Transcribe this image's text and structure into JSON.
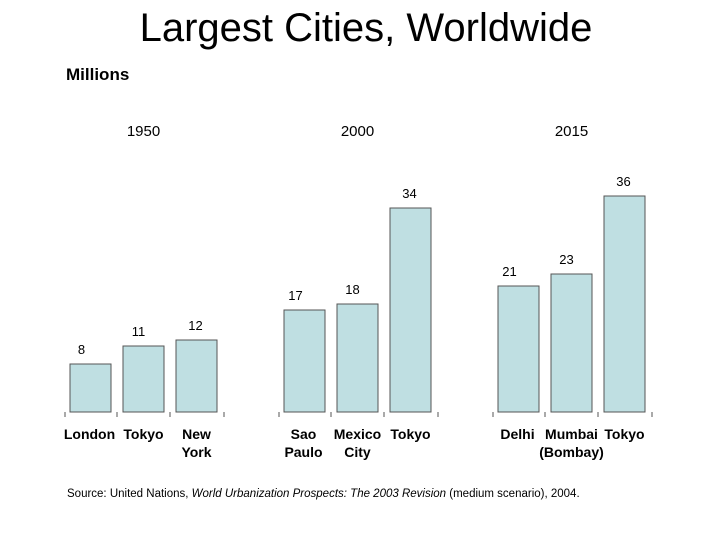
{
  "title": "Largest Cities, Worldwide",
  "units_label": "Millions",
  "source": {
    "prefix": "Source: United Nations, ",
    "publication": "World Urbanization Prospects: The 2003 Revision",
    "suffix": " (medium scenario), 2004."
  },
  "colors": {
    "bar_fill": "#bfdfe2",
    "bar_stroke": "#555555"
  },
  "chart_data": {
    "type": "bar",
    "title": "Largest Cities, Worldwide",
    "ylabel": "Millions",
    "grid": false,
    "groups": [
      {
        "name": "1950",
        "categories": [
          [
            "London"
          ],
          [
            "Tokyo"
          ],
          [
            "New",
            "York"
          ]
        ],
        "values": [
          8,
          11,
          12
        ]
      },
      {
        "name": "2000",
        "categories": [
          [
            "Sao",
            "Paulo"
          ],
          [
            "Mexico",
            "City"
          ],
          [
            "Tokyo"
          ]
        ],
        "values": [
          17,
          18,
          34
        ]
      },
      {
        "name": "2015",
        "categories": [
          [
            "Delhi"
          ],
          [
            "Mumbai",
            "(Bombay)"
          ],
          [
            "Tokyo"
          ]
        ],
        "values": [
          21,
          23,
          36
        ]
      }
    ]
  }
}
